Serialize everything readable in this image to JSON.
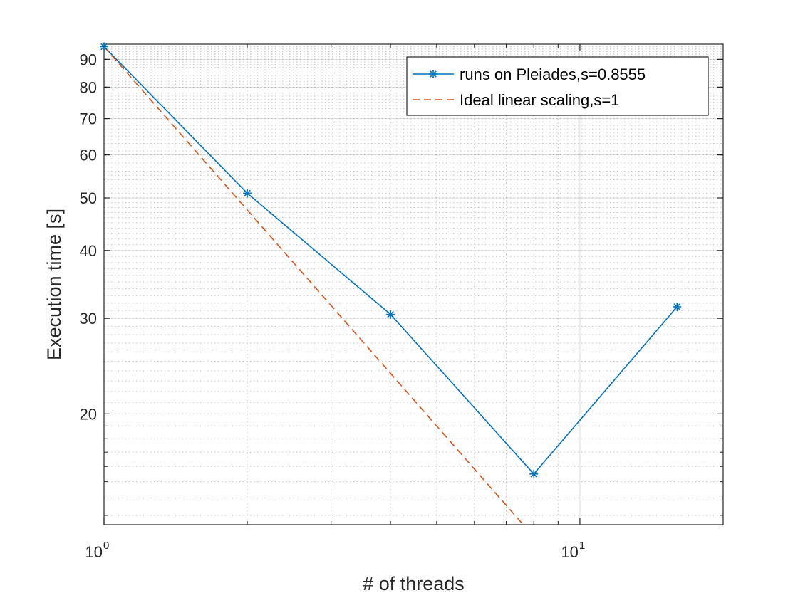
{
  "chart_data": {
    "type": "line",
    "x_scale": "log",
    "y_scale": "log",
    "xlabel": "# of threads",
    "ylabel": "Execution time [s]",
    "xlim": [
      1,
      20
    ],
    "ylim": [
      12.5,
      96
    ],
    "grid": true,
    "minor_grid": true,
    "legend_position": "top-right",
    "x_ticks": [
      {
        "value": 1,
        "base": "10",
        "exp": "0"
      },
      {
        "value": 10,
        "base": "10",
        "exp": "1"
      }
    ],
    "y_ticks": [
      {
        "value": 20,
        "label": "20"
      },
      {
        "value": 30,
        "label": "30"
      },
      {
        "value": 40,
        "label": "40"
      },
      {
        "value": 50,
        "label": "50"
      },
      {
        "value": 60,
        "label": "60"
      },
      {
        "value": 70,
        "label": "70"
      },
      {
        "value": 80,
        "label": "80"
      },
      {
        "value": 90,
        "label": "90"
      }
    ],
    "series": [
      {
        "name": "runs on Pleiades,s=0.8555",
        "color": "#0072BD",
        "style": "solid",
        "marker": "asterisk",
        "x": [
          1,
          2,
          4,
          8,
          16
        ],
        "y": [
          95,
          51,
          30.5,
          15.5,
          31.5
        ]
      },
      {
        "name": "Ideal linear scaling,s=1",
        "color": "#D95319",
        "style": "dashed",
        "marker": "none",
        "x": [
          1,
          8
        ],
        "y": [
          95,
          11.875
        ]
      }
    ]
  }
}
